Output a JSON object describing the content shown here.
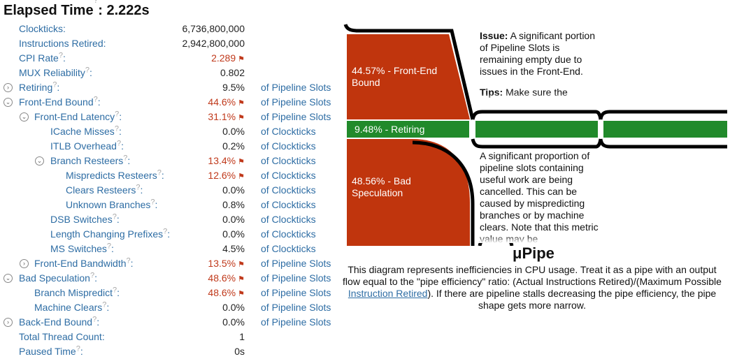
{
  "header": {
    "title": "Elapsed Time",
    "help": "?",
    "value": "2.222s"
  },
  "metrics": [
    {
      "name": "Clockticks",
      "value": "6,736,800,000",
      "unit": ""
    },
    {
      "name": "Instructions Retired",
      "value": "2,942,800,000",
      "unit": ""
    },
    {
      "name": "CPI Rate",
      "value": "2.289",
      "unit": ""
    },
    {
      "name": "MUX Reliability",
      "value": "0.802",
      "unit": ""
    },
    {
      "name": "Retiring",
      "value": "9.5%",
      "unit": "of Pipeline Slots"
    },
    {
      "name": "Front-End Bound",
      "value": "44.6%",
      "unit": "of Pipeline Slots"
    },
    {
      "name": "Front-End Latency",
      "value": "31.1%",
      "unit": "of Pipeline Slots"
    },
    {
      "name": "ICache Misses",
      "value": "0.0%",
      "unit": "of Clockticks"
    },
    {
      "name": "ITLB Overhead",
      "value": "0.2%",
      "unit": "of Clockticks"
    },
    {
      "name": "Branch Resteers",
      "value": "13.4%",
      "unit": "of Clockticks"
    },
    {
      "name": "Mispredicts Resteers",
      "value": "12.6%",
      "unit": "of Clockticks"
    },
    {
      "name": "Clears Resteers",
      "value": "0.0%",
      "unit": "of Clockticks"
    },
    {
      "name": "Unknown Branches",
      "value": "0.8%",
      "unit": "of Clockticks"
    },
    {
      "name": "DSB Switches",
      "value": "0.0%",
      "unit": "of Clockticks"
    },
    {
      "name": "Length Changing Prefixes",
      "value": "0.0%",
      "unit": "of Clockticks"
    },
    {
      "name": "MS Switches",
      "value": "4.5%",
      "unit": "of Clockticks"
    },
    {
      "name": "Front-End Bandwidth",
      "value": "13.5%",
      "unit": "of Pipeline Slots"
    },
    {
      "name": "Bad Speculation",
      "value": "48.6%",
      "unit": "of Pipeline Slots"
    },
    {
      "name": "Branch Mispredict",
      "value": "48.6%",
      "unit": "of Pipeline Slots"
    },
    {
      "name": "Machine Clears",
      "value": "0.0%",
      "unit": "of Pipeline Slots"
    },
    {
      "name": "Back-End Bound",
      "value": "0.0%",
      "unit": "of Pipeline Slots"
    },
    {
      "name": "Total Thread Count",
      "value": "1",
      "unit": ""
    },
    {
      "name": "Paused Time",
      "value": "0s",
      "unit": ""
    }
  ],
  "pipe": {
    "front_end_label": [
      "44.57% - Front-End",
      "Bound"
    ],
    "retiring_label": "9.48% - Retiring",
    "bad_spec_label": [
      "48.56% - Bad",
      "Speculation"
    ],
    "colors": {
      "front_end": "#c0350d",
      "retiring": "#218a2b",
      "bad_spec": "#c0350d",
      "outline": "#000000"
    }
  },
  "notes": {
    "issue_label": "Issue:",
    "issue_text": "A significant portion of Pipeline Slots is remaining empty due to issues in the Front-End.",
    "tips_label": "Tips:",
    "tips_text": "Make sure the",
    "bad_spec_text": "A significant proportion of pipeline slots containing useful work are being cancelled. This can be caused by mispredicting branches or by machine clears. Note that this metric value may be"
  },
  "upipe": {
    "title": "μPipe",
    "desc_before": "This diagram represents inefficiencies in CPU usage. Treat it as a pipe with an output flow equal to the \"pipe efficiency\" ratio: (Actual Instructions Retired)/(Maximum Possible ",
    "link": "Instruction Retired",
    "desc_after": "). If there are pipeline stalls decreasing the pipe efficiency, the pipe shape gets more narrow."
  }
}
